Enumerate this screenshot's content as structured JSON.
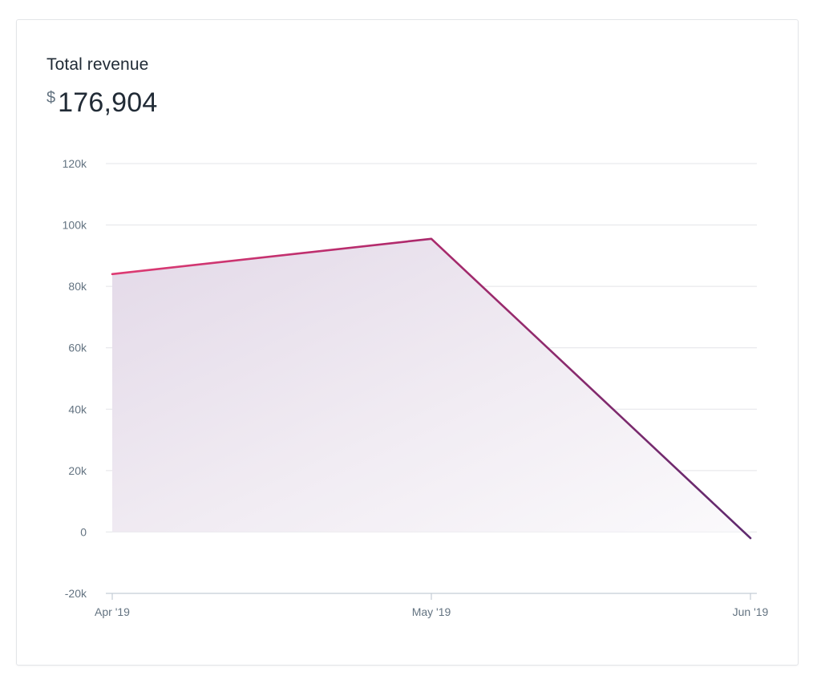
{
  "card": {
    "title": "Total revenue",
    "currency_symbol": "$",
    "total_value": "176,904"
  },
  "chart_data": {
    "type": "area",
    "x": [
      "Apr '19",
      "May '19",
      "Jun '19"
    ],
    "series": [
      {
        "values": [
          84000,
          95500,
          -2000
        ]
      }
    ],
    "y_ticks": [
      "120k",
      "100k",
      "80k",
      "60k",
      "40k",
      "20k",
      "0",
      "-20k"
    ],
    "ylim": [
      -20000,
      120000
    ],
    "grid": true,
    "colors": {
      "line_start": "#de3b73",
      "line_end": "#5e2a6e",
      "fill": "#e6dde9",
      "grid": "#e3e4e8",
      "axis": "#c4cdd5",
      "tick_text": "#637381"
    }
  }
}
